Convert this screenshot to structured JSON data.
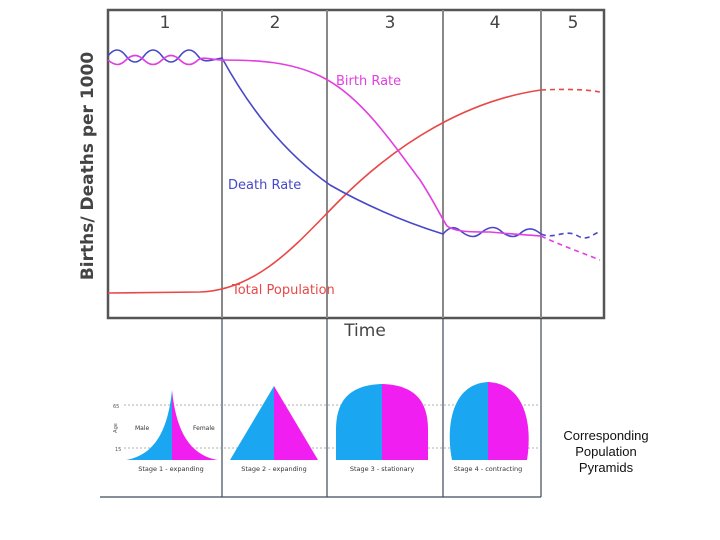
{
  "stages": [
    "1",
    "2",
    "3",
    "4",
    "5"
  ],
  "y_axis_label": "Births/ Deaths per 1000",
  "x_axis_label": "Time",
  "series": {
    "birth_rate": {
      "label": "Birth Rate",
      "color": "#e040e0"
    },
    "death_rate": {
      "label": "Death Rate",
      "color": "#4848c8"
    },
    "total_population": {
      "label": "Total Population",
      "color": "#e84848"
    }
  },
  "pyramids": {
    "age_label": "Age",
    "age_ticks": [
      "65",
      "15"
    ],
    "male_label": "Male",
    "female_label": "Female",
    "male_color": "#1aa6f0",
    "female_color": "#f01ef0",
    "items": [
      {
        "caption": "Stage 1 - expanding"
      },
      {
        "caption": "Stage 2 - expanding"
      },
      {
        "caption": "Stage 3 - stationary"
      },
      {
        "caption": "Stage 4 - contracting"
      }
    ]
  },
  "side_caption": [
    "Corresponding",
    "Population",
    "Pyramids"
  ]
}
